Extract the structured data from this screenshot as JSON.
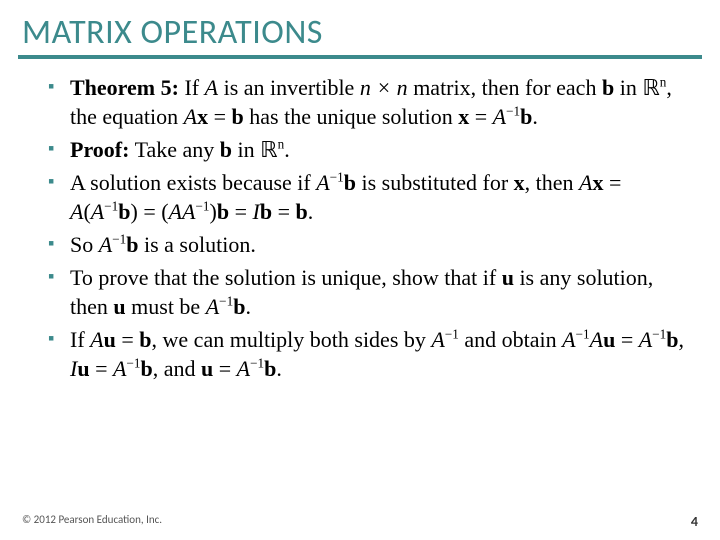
{
  "title": "MATRIX OPERATIONS",
  "colors": {
    "accent": "#3c8a8c",
    "text": "#000000",
    "bg": "#ffffff"
  },
  "fonts": {
    "title_family": "Calibri",
    "title_size_pt": 26,
    "body_family": "Times New Roman",
    "body_size_pt": 17
  },
  "bullets": {
    "b1_a": "Theorem 5:",
    "b1_b": " If ",
    "b1_A": "A",
    "b1_c": " is an invertible ",
    "b1_nxn": "n × n",
    "b1_d": " matrix, then for each ",
    "b1_bvec": "b",
    "b1_e": " in ",
    "b1_rn": "ℝ",
    "b1_n": "n",
    "b1_f": ", the equation ",
    "b1_eq": "Ax = b",
    "b1_g": " has the unique solution ",
    "b1_sol": "x = A⁻¹b",
    "b1_h": ".",
    "b2_a": "Proof:",
    "b2_b": " Take any ",
    "b2_bvec": "b",
    "b2_c": " in ",
    "b2_rn": "ℝ",
    "b2_n": "n",
    "b2_d": ".",
    "b3_a": "A solution exists because if ",
    "b3_ab": "A⁻¹b",
    "b3_b": " is substituted for ",
    "b3_x": "x",
    "b3_c": ", then ",
    "b3_eq": "Ax = A(A⁻¹b) = (AA⁻¹)b = Ib = b",
    "b3_d": ".",
    "b4_a": "So ",
    "b4_ab": "A⁻¹b",
    "b4_b": " is a solution.",
    "b5_a": "To prove that the solution is unique, show that if ",
    "b5_u": "u",
    "b5_b": " is any solution, then ",
    "b5_u2": "u",
    "b5_c": " must be ",
    "b5_ab": "A⁻¹b",
    "b5_d": ".",
    "b6_a": "If ",
    "b6_eq1": "Au = b",
    "b6_b": ", we can multiply both sides by ",
    "b6_ainv": "A⁻¹",
    "b6_c": " and obtain ",
    "b6_eq2": "A⁻¹Au = A⁻¹b",
    "b6_d": ", ",
    "b6_eq3": "Iu = A⁻¹b",
    "b6_e": ", and ",
    "b6_eq4": "u = A⁻¹b",
    "b6_f": "."
  },
  "footer": {
    "copyright": "© 2012 Pearson Education, Inc.",
    "page": "4"
  }
}
